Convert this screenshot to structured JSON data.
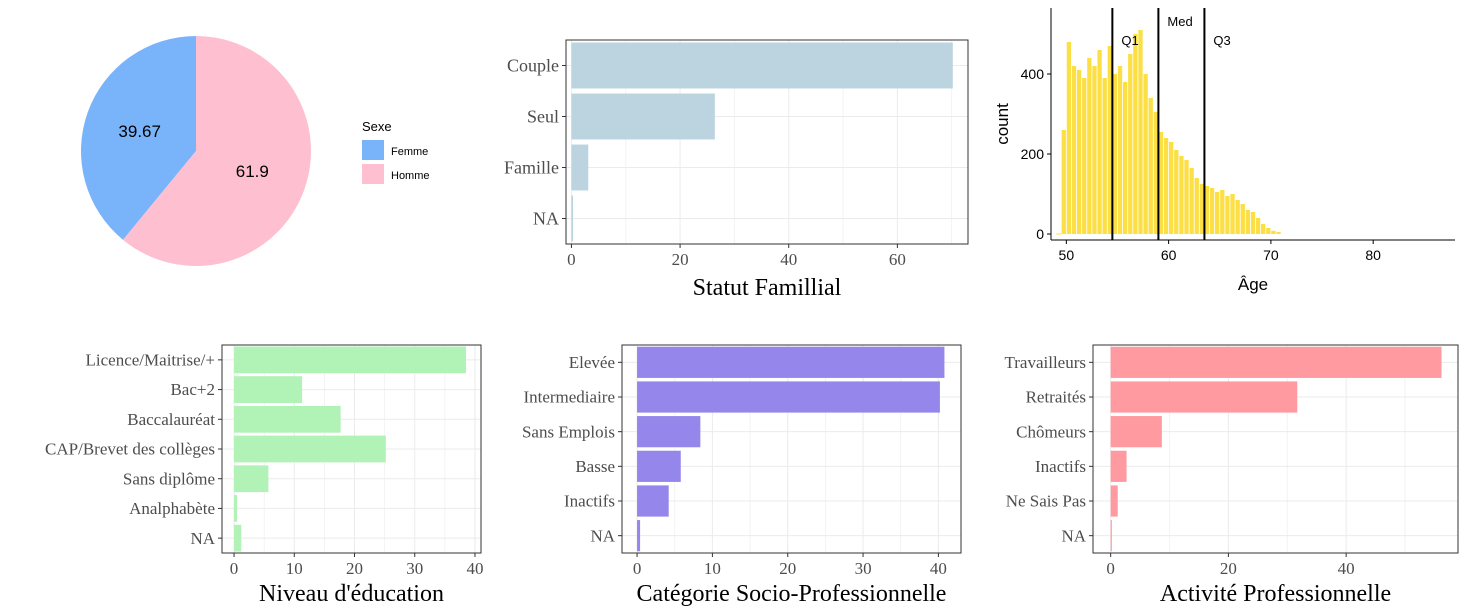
{
  "chart_data": [
    {
      "type": "pie",
      "legend_title": "Sexe",
      "legend_position": "right",
      "slices": [
        {
          "label": "Femme",
          "value": 39.67,
          "display": "39.67",
          "color": "#79B4FB"
        },
        {
          "label": "Homme",
          "value": 61.9,
          "display": "61.9",
          "color": "#FEC0D1"
        }
      ]
    },
    {
      "type": "bar",
      "orientation": "horizontal",
      "title": "Statut Famillial",
      "categories": [
        "Couple",
        "Seul",
        "Famille",
        "NA"
      ],
      "values": [
        70.2,
        26.4,
        3.1,
        0.3
      ],
      "xlim": [
        -1,
        73
      ],
      "xticks": [
        0,
        20,
        40,
        60
      ],
      "color": "#BCD3E0",
      "grid": true
    },
    {
      "type": "bar",
      "subtype": "histogram",
      "title": "",
      "xlabel": "Âge",
      "ylabel": "count",
      "xlim": [
        48.5,
        88
      ],
      "ylim": [
        -15,
        565
      ],
      "xticks": [
        50,
        60,
        70,
        80
      ],
      "yticks": [
        0,
        200,
        400
      ],
      "bin_start": 49.5,
      "bin_width": 0.5,
      "counts": [
        260,
        480,
        420,
        410,
        390,
        440,
        420,
        460,
        390,
        470,
        400,
        420,
        380,
        450,
        500,
        510,
        400,
        340,
        305,
        255,
        240,
        230,
        210,
        195,
        185,
        165,
        140,
        125,
        120,
        115,
        105,
        110,
        95,
        100,
        85,
        75,
        60,
        55,
        40,
        25,
        15,
        8,
        5
      ],
      "color": "#FBDF45",
      "vlines": [
        {
          "label": "Q1",
          "x": 54.5
        },
        {
          "label": "Med",
          "x": 59.0
        },
        {
          "label": "Q3",
          "x": 63.5
        }
      ],
      "grid": false
    },
    {
      "type": "bar",
      "orientation": "horizontal",
      "title": "Niveau d'éducation",
      "categories": [
        "Licence/Maitrise/+",
        "Bac+2",
        "Baccalauréat",
        "CAP/Brevet des collèges",
        "Sans diplôme",
        "Analphabète",
        "NA"
      ],
      "values": [
        38.5,
        11.3,
        17.7,
        25.2,
        5.7,
        0.5,
        1.2
      ],
      "xlim": [
        -2,
        41
      ],
      "xticks": [
        0,
        10,
        20,
        30,
        40
      ],
      "color": "#B1F2B6",
      "grid": true
    },
    {
      "type": "bar",
      "orientation": "horizontal",
      "title": "Catégorie Socio-Professionnelle",
      "categories": [
        "Elevée",
        "Intermediaire",
        "Sans Emplois",
        "Basse",
        "Inactifs",
        "NA"
      ],
      "values": [
        40.8,
        40.2,
        8.4,
        5.8,
        4.2,
        0.4
      ],
      "xlim": [
        -2,
        43
      ],
      "xticks": [
        0,
        10,
        20,
        30,
        40
      ],
      "color": "#9586EC",
      "grid": true
    },
    {
      "type": "bar",
      "orientation": "horizontal",
      "title": "Activité Professionnelle",
      "categories": [
        "Travailleurs",
        "Retraités",
        "Chômeurs",
        "Inactifs",
        "Ne Sais Pas",
        "NA"
      ],
      "values": [
        56.2,
        31.7,
        8.7,
        2.7,
        1.2,
        0.2
      ],
      "xlim": [
        -3,
        59
      ],
      "xticks": [
        0,
        20,
        40
      ],
      "color": "#FF9AA1",
      "grid": true
    }
  ]
}
